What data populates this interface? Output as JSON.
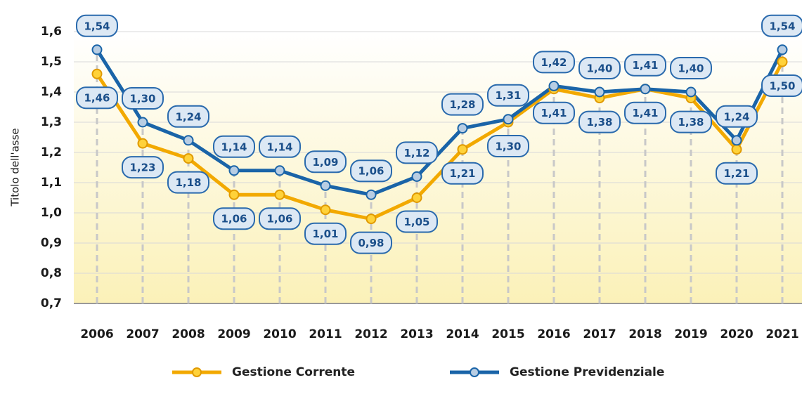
{
  "chart_data": {
    "type": "line",
    "y_label": "Titolo dell'asse",
    "categories": [
      "2006",
      "2007",
      "2008",
      "2009",
      "2010",
      "2011",
      "2012",
      "2013",
      "2014",
      "2015",
      "2016",
      "2017",
      "2018",
      "2019",
      "2020",
      "2021"
    ],
    "series": [
      {
        "name": "Gestione Corrente",
        "color": "#f2a900",
        "values": [
          1.46,
          1.23,
          1.18,
          1.06,
          1.06,
          1.01,
          0.98,
          1.05,
          1.21,
          1.3,
          1.41,
          1.38,
          1.41,
          1.38,
          1.21,
          1.5
        ],
        "value_labels": [
          "1,46",
          "1,23",
          "1,18",
          "1,06",
          "1,06",
          "1,01",
          "0,98",
          "1,05",
          "1,21",
          "1,30",
          "1,41",
          "1,38",
          "1,41",
          "1,38",
          "1,21",
          "1,50"
        ]
      },
      {
        "name": "Gestione Previdenziale",
        "color": "#1a64a8",
        "values": [
          1.54,
          1.3,
          1.24,
          1.14,
          1.14,
          1.09,
          1.06,
          1.12,
          1.28,
          1.31,
          1.42,
          1.4,
          1.41,
          1.4,
          1.24,
          1.54
        ],
        "value_labels": [
          "1,54",
          "1,30",
          "1,24",
          "1,14",
          "1,14",
          "1,09",
          "1,06",
          "1,12",
          "1,28",
          "1,31",
          "1,42",
          "1,40",
          "1,41",
          "1,40",
          "1,24",
          "1,54"
        ]
      }
    ],
    "ylim": [
      0.7,
      1.6
    ],
    "yticks": [
      {
        "value": 0.7,
        "label": "0,7"
      },
      {
        "value": 0.8,
        "label": "0,8"
      },
      {
        "value": 0.9,
        "label": "0,9"
      },
      {
        "value": 1.0,
        "label": "1,0"
      },
      {
        "value": 1.1,
        "label": "1,1"
      },
      {
        "value": 1.2,
        "label": "1,2"
      },
      {
        "value": 1.3,
        "label": "1,3"
      },
      {
        "value": 1.4,
        "label": "1,4"
      },
      {
        "value": 1.5,
        "label": "1,5"
      },
      {
        "value": 1.6,
        "label": "1,6"
      }
    ],
    "grid": true,
    "legend": "bottom"
  }
}
